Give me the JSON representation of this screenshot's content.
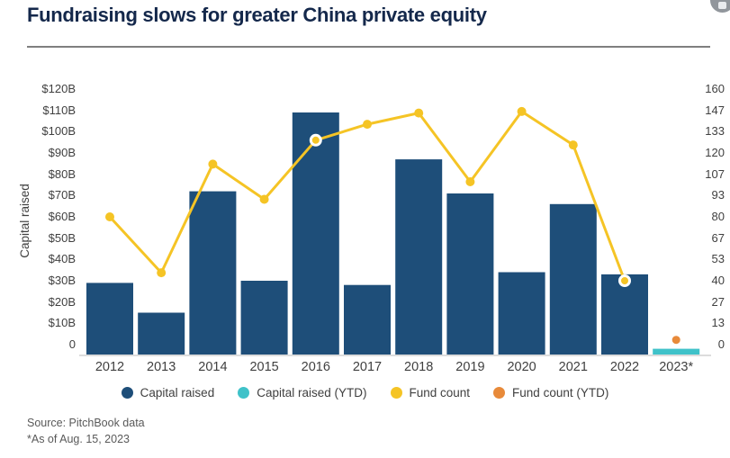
{
  "header": {
    "title": "Fundraising slows for greater China private equity"
  },
  "chart_data": {
    "type": "combo-bar-line",
    "categories": [
      "2012",
      "2013",
      "2014",
      "2015",
      "2016",
      "2017",
      "2018",
      "2019",
      "2020",
      "2021",
      "2022",
      "2023*"
    ],
    "series": [
      {
        "name": "Capital raised",
        "type": "bar",
        "axis": "left",
        "unit": "$B",
        "color": "#1e4e79",
        "values": [
          29,
          15,
          72,
          30,
          109,
          28,
          87,
          71,
          34,
          66,
          33,
          null
        ]
      },
      {
        "name": "Capital raised (YTD)",
        "type": "bar",
        "axis": "left",
        "unit": "$B",
        "color": "#3fc2c9",
        "values": [
          null,
          null,
          null,
          null,
          null,
          null,
          null,
          null,
          null,
          null,
          null,
          2.7
        ]
      },
      {
        "name": "Fund count",
        "type": "line",
        "axis": "right",
        "color": "#f5c425",
        "values": [
          80,
          45,
          113,
          91,
          128,
          138,
          145,
          102,
          146,
          125,
          40,
          null
        ],
        "highlighted_years": [
          "2016",
          "2022"
        ]
      },
      {
        "name": "Fund count (YTD)",
        "type": "point",
        "axis": "right",
        "color": "#e88a3a",
        "values": [
          null,
          null,
          null,
          null,
          null,
          null,
          null,
          null,
          null,
          null,
          null,
          3
        ]
      }
    ],
    "left_axis": {
      "title": "Capital raised",
      "max": 120,
      "ticks": [
        "$120B",
        "$110B",
        "$100B",
        "$90B",
        "$80B",
        "$70B",
        "$60B",
        "$50B",
        "$40B",
        "$30B",
        "$20B",
        "$10B",
        "0"
      ]
    },
    "right_axis": {
      "max": 160,
      "ticks": [
        "160",
        "147",
        "133",
        "120",
        "107",
        "93",
        "80",
        "67",
        "53",
        "40",
        "27",
        "13",
        "0"
      ]
    },
    "legend": [
      {
        "label": "Capital raised",
        "color": "#1e4e79"
      },
      {
        "label": "Capital raised (YTD)",
        "color": "#3fc2c9"
      },
      {
        "label": "Fund count",
        "color": "#f5c425"
      },
      {
        "label": "Fund count (YTD)",
        "color": "#e88a3a"
      }
    ],
    "grid": false,
    "legend_position": "bottom"
  },
  "footer": {
    "source": "Source: PitchBook data",
    "note": "*As of Aug. 15, 2023"
  }
}
